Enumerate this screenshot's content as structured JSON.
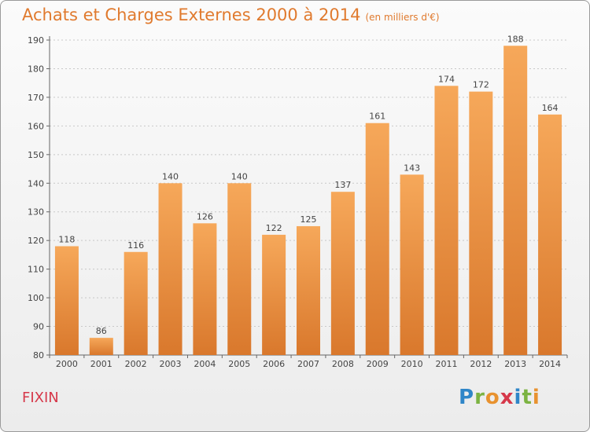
{
  "header": {
    "title": "Achats et Charges Externes 2000 à 2014",
    "subtitle": "(en milliers d'€)"
  },
  "footer": {
    "commune": "FIXIN",
    "logo_text": "Proxiti"
  },
  "chart_data": {
    "type": "bar",
    "title": "Achats et Charges Externes 2000 à 2014",
    "subtitle": "(en milliers d'€)",
    "xlabel": "",
    "ylabel": "",
    "categories": [
      "2000",
      "2001",
      "2002",
      "2003",
      "2004",
      "2005",
      "2006",
      "2007",
      "2008",
      "2009",
      "2010",
      "2011",
      "2012",
      "2013",
      "2014"
    ],
    "values": [
      118,
      86,
      116,
      140,
      126,
      140,
      122,
      125,
      137,
      161,
      143,
      174,
      172,
      188,
      164
    ],
    "ylim": [
      80,
      190
    ],
    "yticks": [
      80,
      90,
      100,
      110,
      120,
      130,
      140,
      150,
      160,
      170,
      180,
      190
    ],
    "grid": true,
    "bar_color_light": "#f6a85a",
    "bar_color_dark": "#d9782c"
  }
}
